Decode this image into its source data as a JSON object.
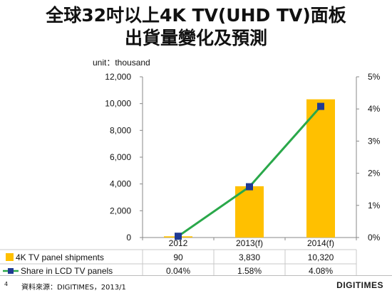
{
  "title_line1": "全球32吋以上4K TV(UHD TV)面板",
  "title_line2": "出貨量變化及預測",
  "unit_label": "unit：thousand",
  "page_number": "4",
  "source_text": "資料來源：DIGITIMES，2013/1",
  "brand": "DIGITIMES",
  "colors": {
    "bar": "#ffc000",
    "line": "#2aa84a",
    "marker": "#1f3a93"
  },
  "chart_data": {
    "type": "bar+line",
    "categories": [
      "2012",
      "2013(f)",
      "2014(f)"
    ],
    "series": [
      {
        "name": "4K TV panel shipments",
        "type": "bar",
        "axis": "left",
        "values": [
          90,
          3830,
          10320
        ],
        "labels": [
          "90",
          "3,830",
          "10,320"
        ]
      },
      {
        "name": "Share in LCD TV panels",
        "type": "line",
        "axis": "right",
        "values": [
          0.04,
          1.58,
          4.08
        ],
        "labels": [
          "0.04%",
          "1.58%",
          "4.08%"
        ]
      }
    ],
    "y_left": {
      "min": 0,
      "max": 12000,
      "ticks": [
        0,
        2000,
        4000,
        6000,
        8000,
        10000,
        12000
      ],
      "tick_labels": [
        "0",
        "2,000",
        "4,000",
        "6,000",
        "8,000",
        "10,000",
        "12,000"
      ]
    },
    "y_right": {
      "min": 0,
      "max": 5,
      "ticks": [
        0,
        1,
        2,
        3,
        4,
        5
      ],
      "tick_labels": [
        "0%",
        "1%",
        "2%",
        "3%",
        "4%",
        "5%"
      ]
    },
    "grid": false,
    "legend": "data-table-below"
  }
}
